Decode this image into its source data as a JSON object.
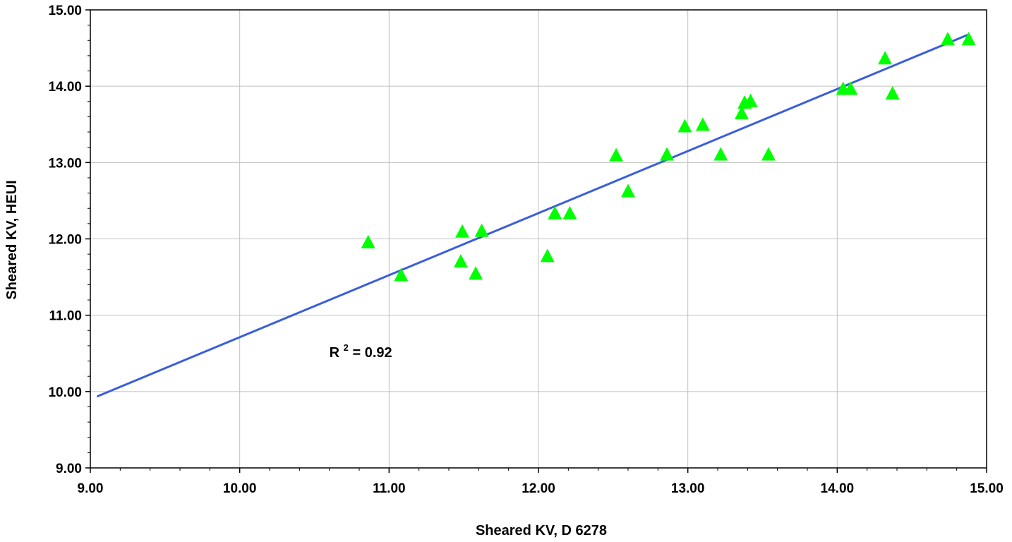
{
  "chart_data": {
    "type": "scatter",
    "title": "",
    "xlabel": "Sheared KV, D 6278",
    "ylabel": "Sheared KV, HEUI",
    "xlim": [
      9,
      15
    ],
    "ylim": [
      9,
      15
    ],
    "x_ticks": [
      "9.00",
      "10.00",
      "11.00",
      "12.00",
      "13.00",
      "14.00",
      "15.00"
    ],
    "y_ticks": [
      "9.00",
      "10.00",
      "11.00",
      "12.00",
      "13.00",
      "14.00",
      "15.00"
    ],
    "grid": true,
    "legend": "none",
    "annotation_base": "R",
    "annotation_exp": "2",
    "annotation_value": " = 0.92",
    "annotation_pos": {
      "x": 10.6,
      "y": 10.45
    },
    "points": [
      {
        "x": 10.86,
        "y": 11.95
      },
      {
        "x": 11.08,
        "y": 11.52
      },
      {
        "x": 11.48,
        "y": 11.7
      },
      {
        "x": 11.49,
        "y": 12.09
      },
      {
        "x": 11.58,
        "y": 11.54
      },
      {
        "x": 11.62,
        "y": 12.1
      },
      {
        "x": 12.06,
        "y": 11.77
      },
      {
        "x": 12.11,
        "y": 12.33
      },
      {
        "x": 12.21,
        "y": 12.33
      },
      {
        "x": 12.52,
        "y": 13.09
      },
      {
        "x": 12.6,
        "y": 12.62
      },
      {
        "x": 12.86,
        "y": 13.1
      },
      {
        "x": 12.98,
        "y": 13.47
      },
      {
        "x": 13.1,
        "y": 13.49
      },
      {
        "x": 13.22,
        "y": 13.1
      },
      {
        "x": 13.36,
        "y": 13.64
      },
      {
        "x": 13.38,
        "y": 13.78
      },
      {
        "x": 13.42,
        "y": 13.8
      },
      {
        "x": 13.54,
        "y": 13.1
      },
      {
        "x": 14.04,
        "y": 13.96
      },
      {
        "x": 14.09,
        "y": 13.96
      },
      {
        "x": 14.32,
        "y": 14.36
      },
      {
        "x": 14.37,
        "y": 13.9
      },
      {
        "x": 14.74,
        "y": 14.61
      },
      {
        "x": 14.88,
        "y": 14.61
      }
    ],
    "trendline": {
      "x": [
        9.05,
        14.87
      ],
      "y": [
        9.94,
        14.67
      ]
    },
    "colors": {
      "marker": "#00ff00",
      "line": "#3a5fd9",
      "grid": "#c0c0c0",
      "axis": "#000000"
    }
  }
}
